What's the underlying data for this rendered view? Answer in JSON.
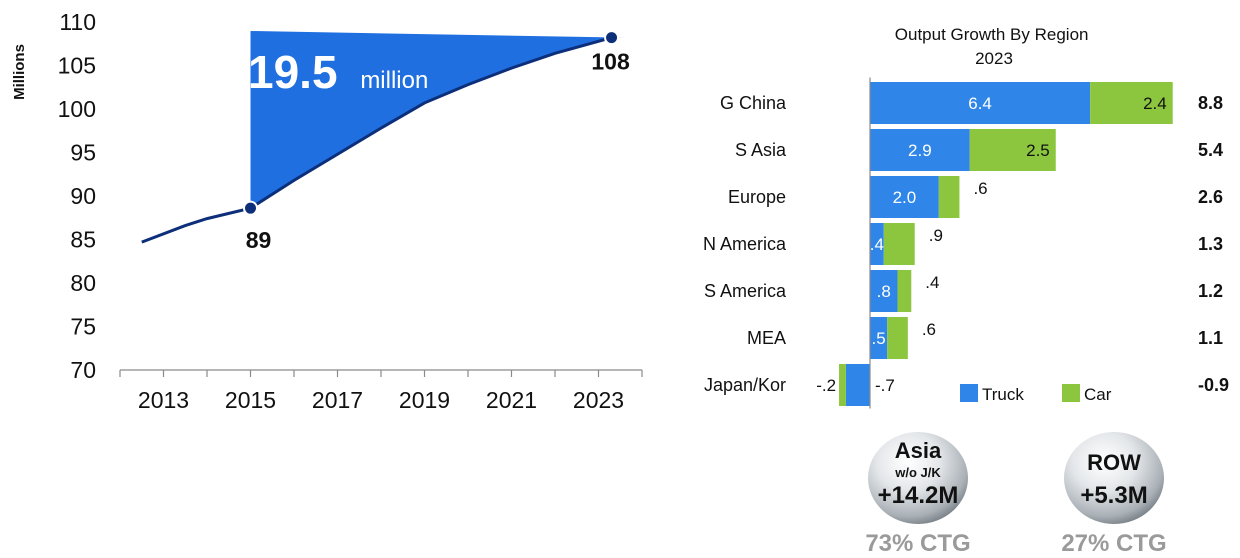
{
  "colors": {
    "line": "#0d2f7a",
    "fill": "#1f6fe0",
    "truck": "#2f86e8",
    "car": "#8cc63f",
    "text": "#111111",
    "sphere_text": "#111111",
    "ctg_text": "#9a9a9a"
  },
  "chart_data": [
    {
      "type": "line",
      "title": "",
      "xlabel": "",
      "ylabel": "Millions",
      "xlim": [
        2012,
        2024
      ],
      "ylim": [
        70,
        110
      ],
      "yticks": [
        70,
        75,
        80,
        85,
        90,
        95,
        100,
        105,
        110
      ],
      "ytick_labels": [
        "70",
        "75",
        "80",
        "85",
        "90",
        "95",
        "100",
        "105",
        "110"
      ],
      "xticks": [
        2013,
        2015,
        2017,
        2019,
        2021,
        2023
      ],
      "xtick_labels": [
        "2013",
        "2015",
        "2017",
        "2019",
        "2021",
        "2023"
      ],
      "grid": false,
      "series": [
        {
          "x": [
            2012.5,
            2013.5,
            2014,
            2015,
            2016,
            2017,
            2018,
            2019,
            2020,
            2021,
            2022,
            2023.3
          ],
          "y": [
            84.7,
            86.6,
            87.4,
            88.6,
            91.8,
            94.8,
            97.8,
            100.7,
            102.8,
            104.7,
            106.4,
            108.2
          ]
        }
      ],
      "markers": [
        {
          "x": 2015,
          "y": 88.6,
          "label": "89"
        },
        {
          "x": 2023.3,
          "y": 108.2,
          "label": "108"
        }
      ],
      "growth_annotation": {
        "value": "19.5",
        "unit": "million"
      }
    },
    {
      "type": "bar",
      "orientation": "horizontal",
      "stacked": true,
      "title": "Output Growth By Region\n2023",
      "title_lines": [
        "Output Growth By Region",
        "2023"
      ],
      "categories": [
        "G China",
        "S Asia",
        "Europe",
        "N America",
        "S America",
        "MEA",
        "Japan/Kor"
      ],
      "series": [
        {
          "name": "Truck",
          "values": [
            6.4,
            2.9,
            2.0,
            0.4,
            0.8,
            0.5,
            -0.7
          ],
          "labels": [
            "6.4",
            "2.9",
            "2.0",
            ".4",
            ".8",
            ".5",
            "-.7"
          ]
        },
        {
          "name": "Car",
          "values": [
            2.4,
            2.5,
            0.6,
            0.9,
            0.4,
            0.6,
            -0.2
          ],
          "labels": [
            "2.4",
            "2.5",
            ".6",
            ".9",
            ".4",
            ".6",
            "-.2"
          ]
        }
      ],
      "totals": [
        "8.8",
        "5.4",
        "2.6",
        "1.3",
        "1.2",
        "1.1",
        "-0.9"
      ],
      "legend": {
        "placement": "bottom-right",
        "entries": [
          "Truck",
          "Car"
        ]
      }
    }
  ],
  "summary": [
    {
      "region": "Asia",
      "sub": "w/o J/K",
      "value": "+14.2M",
      "share": "73% CTG"
    },
    {
      "region": "ROW",
      "sub": "",
      "value": "+5.3M",
      "share": "27% CTG"
    }
  ]
}
